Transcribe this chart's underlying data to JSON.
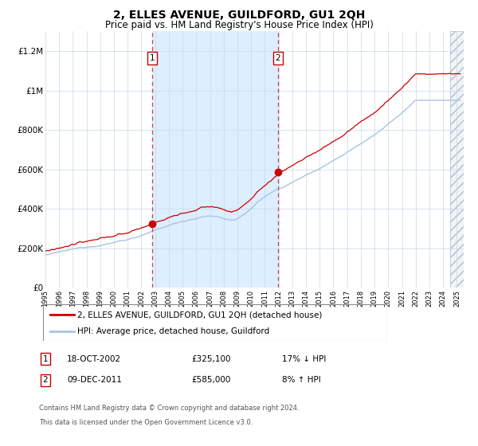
{
  "title": "2, ELLES AVENUE, GUILDFORD, GU1 2QH",
  "subtitle": "Price paid vs. HM Land Registry's House Price Index (HPI)",
  "title_fontsize": 10,
  "subtitle_fontsize": 8.5,
  "xlim_start": 1995.0,
  "xlim_end": 2025.5,
  "ylim_min": 0,
  "ylim_max": 1300000,
  "yticks": [
    0,
    200000,
    400000,
    600000,
    800000,
    1000000,
    1200000
  ],
  "ytick_labels": [
    "£0",
    "£200K",
    "£400K",
    "£600K",
    "£800K",
    "£1M",
    "£1.2M"
  ],
  "purchase1_x": 2002.79,
  "purchase1_y": 325100,
  "purchase2_x": 2011.94,
  "purchase2_y": 585000,
  "plot_bg": "#ffffff",
  "fig_bg": "#ffffff",
  "hpi_color": "#a8c4e0",
  "price_color": "#cc0000",
  "shade_color": "#ddeeff",
  "grid_color": "#c8d8e8",
  "hatch_color": "#b0bec8",
  "legend_line1": "2, ELLES AVENUE, GUILDFORD, GU1 2QH (detached house)",
  "legend_line2": "HPI: Average price, detached house, Guildford",
  "footer1": "Contains HM Land Registry data © Crown copyright and database right 2024.",
  "footer2": "This data is licensed under the Open Government Licence v3.0.",
  "table_row1": [
    "1",
    "18-OCT-2002",
    "£325,100",
    "17% ↓ HPI"
  ],
  "table_row2": [
    "2",
    "09-DEC-2011",
    "£585,000",
    "8% ↑ HPI"
  ]
}
